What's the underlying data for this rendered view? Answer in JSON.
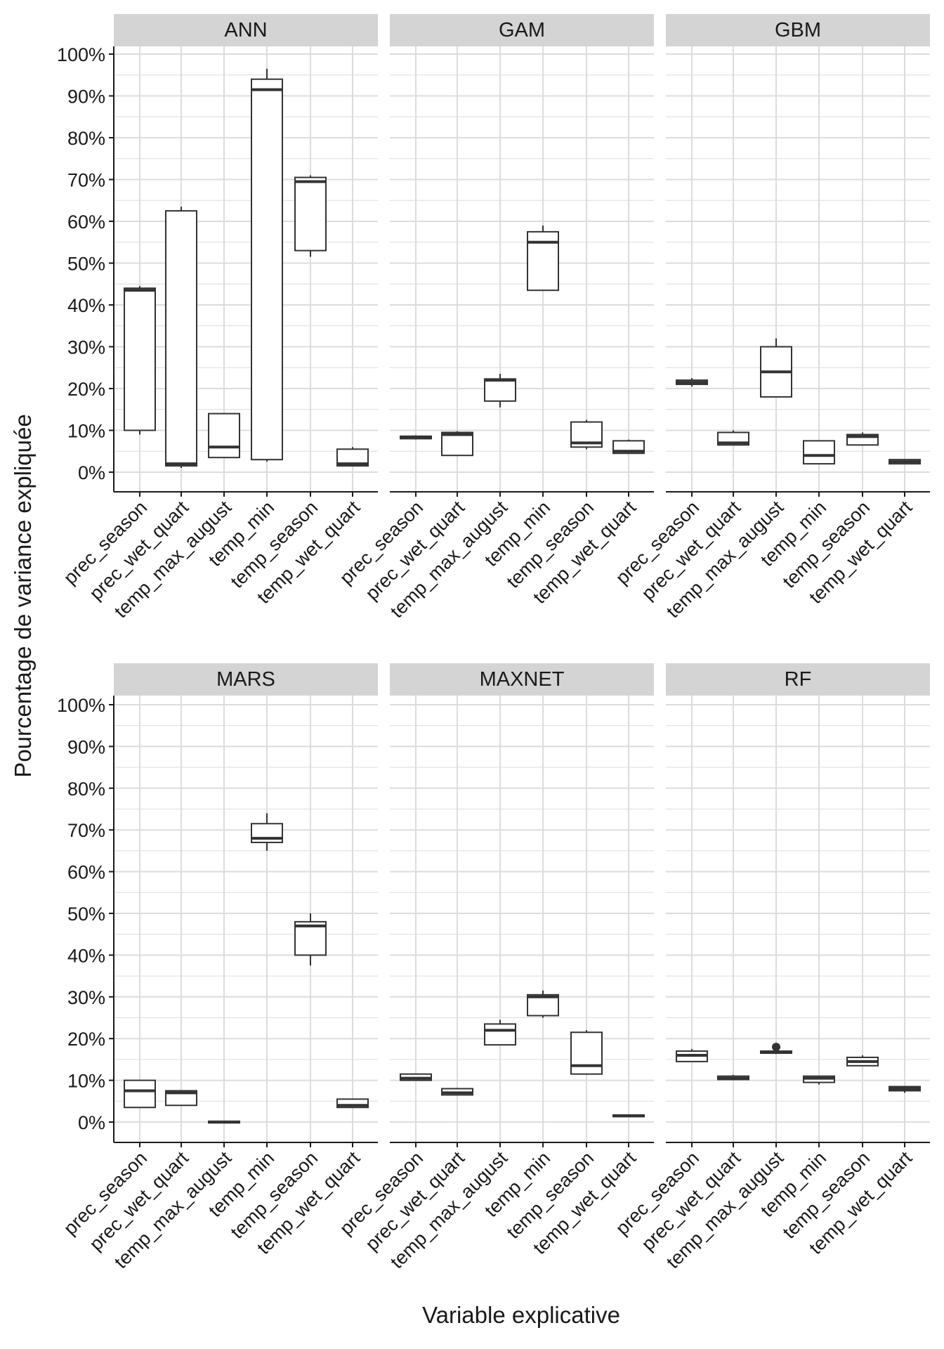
{
  "chart_data": {
    "type": "boxplot",
    "facet_layout": "2 rows x 3 columns",
    "xlabel": "Variable explicative",
    "ylabel": "Pourcentage de variance expliquée",
    "ylim": [
      -5,
      102
    ],
    "y_ticks": [
      0,
      10,
      20,
      30,
      40,
      50,
      60,
      70,
      80,
      90,
      100
    ],
    "y_tick_labels": [
      "0%",
      "10%",
      "20%",
      "30%",
      "40%",
      "50%",
      "60%",
      "70%",
      "80%",
      "90%",
      "100%"
    ],
    "categories": [
      "prec_season",
      "prec_wet_quart",
      "temp_max_august",
      "temp_min",
      "temp_season",
      "temp_wet_quart"
    ],
    "grid": true,
    "colors": {
      "strip_bg": "#d4d4d4",
      "grid": "#dcdcdc",
      "box_stroke": "#333333",
      "box_fill": "#ffffff"
    },
    "panels": [
      {
        "title": "ANN",
        "boxes": [
          {
            "lower": 9,
            "q1": 10,
            "median": 43.5,
            "q3": 44,
            "upper": 44.5,
            "outliers": []
          },
          {
            "lower": 1,
            "q1": 1.5,
            "median": 2,
            "q3": 62.5,
            "upper": 63.5,
            "outliers": []
          },
          {
            "lower": 3.5,
            "q1": 3.5,
            "median": 6,
            "q3": 14,
            "upper": 14,
            "outliers": []
          },
          {
            "lower": 2.5,
            "q1": 3,
            "median": 91.5,
            "q3": 94,
            "upper": 96.5,
            "outliers": []
          },
          {
            "lower": 51.5,
            "q1": 53,
            "median": 69.5,
            "q3": 70.5,
            "upper": 71,
            "outliers": []
          },
          {
            "lower": 1.5,
            "q1": 1.5,
            "median": 2,
            "q3": 5.5,
            "upper": 6,
            "outliers": []
          }
        ]
      },
      {
        "title": "GAM",
        "boxes": [
          {
            "lower": 7.8,
            "q1": 8,
            "median": 8.3,
            "q3": 8.6,
            "upper": 8.8,
            "outliers": []
          },
          {
            "lower": 4,
            "q1": 4,
            "median": 9,
            "q3": 9.5,
            "upper": 9.8,
            "outliers": []
          },
          {
            "lower": 15.5,
            "q1": 17,
            "median": 22,
            "q3": 22.3,
            "upper": 23.5,
            "outliers": []
          },
          {
            "lower": 43.5,
            "q1": 43.5,
            "median": 55,
            "q3": 57.5,
            "upper": 59,
            "outliers": []
          },
          {
            "lower": 5.5,
            "q1": 6,
            "median": 7,
            "q3": 12,
            "upper": 12.5,
            "outliers": []
          },
          {
            "lower": 4.5,
            "q1": 4.5,
            "median": 5,
            "q3": 7.5,
            "upper": 7.8,
            "outliers": []
          }
        ]
      },
      {
        "title": "GBM",
        "boxes": [
          {
            "lower": 20.5,
            "q1": 21,
            "median": 21.5,
            "q3": 22,
            "upper": 22.5,
            "outliers": []
          },
          {
            "lower": 6.5,
            "q1": 6.5,
            "median": 7,
            "q3": 9.5,
            "upper": 10,
            "outliers": []
          },
          {
            "lower": 18,
            "q1": 18,
            "median": 24,
            "q3": 30,
            "upper": 32,
            "outliers": []
          },
          {
            "lower": 2,
            "q1": 2,
            "median": 4,
            "q3": 7.5,
            "upper": 7.5,
            "outliers": []
          },
          {
            "lower": 6.5,
            "q1": 6.5,
            "median": 8.5,
            "q3": 9,
            "upper": 9.5,
            "outliers": []
          },
          {
            "lower": 2,
            "q1": 2,
            "median": 2.5,
            "q3": 3,
            "upper": 3,
            "outliers": []
          }
        ]
      },
      {
        "title": "MARS",
        "boxes": [
          {
            "lower": 3.5,
            "q1": 3.5,
            "median": 7.5,
            "q3": 10,
            "upper": 10,
            "outliers": []
          },
          {
            "lower": 4,
            "q1": 4,
            "median": 7,
            "q3": 7.5,
            "upper": 7.5,
            "outliers": []
          },
          {
            "lower": -0.2,
            "q1": -0.2,
            "median": 0,
            "q3": 0.2,
            "upper": 0.2,
            "outliers": []
          },
          {
            "lower": 65,
            "q1": 67,
            "median": 68,
            "q3": 71.5,
            "upper": 74,
            "outliers": []
          },
          {
            "lower": 37.5,
            "q1": 40,
            "median": 47,
            "q3": 48,
            "upper": 50,
            "outliers": []
          },
          {
            "lower": 3.5,
            "q1": 3.5,
            "median": 4,
            "q3": 5.5,
            "upper": 5.5,
            "outliers": []
          }
        ]
      },
      {
        "title": "MAXNET",
        "boxes": [
          {
            "lower": 10,
            "q1": 10,
            "median": 10.5,
            "q3": 11.5,
            "upper": 11.5,
            "outliers": []
          },
          {
            "lower": 6.5,
            "q1": 6.5,
            "median": 7,
            "q3": 8,
            "upper": 8.2,
            "outliers": []
          },
          {
            "lower": 18.5,
            "q1": 18.5,
            "median": 22,
            "q3": 23.5,
            "upper": 24.5,
            "outliers": []
          },
          {
            "lower": 25,
            "q1": 25.5,
            "median": 30,
            "q3": 30.5,
            "upper": 31.5,
            "outliers": []
          },
          {
            "lower": 11.5,
            "q1": 11.5,
            "median": 13.5,
            "q3": 21.5,
            "upper": 22,
            "outliers": []
          },
          {
            "lower": 1.3,
            "q1": 1.3,
            "median": 1.5,
            "q3": 1.7,
            "upper": 1.7,
            "outliers": []
          }
        ]
      },
      {
        "title": "RF",
        "boxes": [
          {
            "lower": 14.5,
            "q1": 14.5,
            "median": 16,
            "q3": 17,
            "upper": 17.5,
            "outliers": []
          },
          {
            "lower": 10,
            "q1": 10.2,
            "median": 10.5,
            "q3": 11,
            "upper": 11.3,
            "outliers": []
          },
          {
            "lower": 16.3,
            "q1": 16.5,
            "median": 16.7,
            "q3": 17,
            "upper": 17.2,
            "outliers": [
              18
            ]
          },
          {
            "lower": 9,
            "q1": 9.5,
            "median": 10.5,
            "q3": 11,
            "upper": 11,
            "outliers": []
          },
          {
            "lower": 13.5,
            "q1": 13.5,
            "median": 14.5,
            "q3": 15.5,
            "upper": 16,
            "outliers": []
          },
          {
            "lower": 7,
            "q1": 7.5,
            "median": 8,
            "q3": 8.5,
            "upper": 8.5,
            "outliers": []
          }
        ]
      }
    ]
  }
}
